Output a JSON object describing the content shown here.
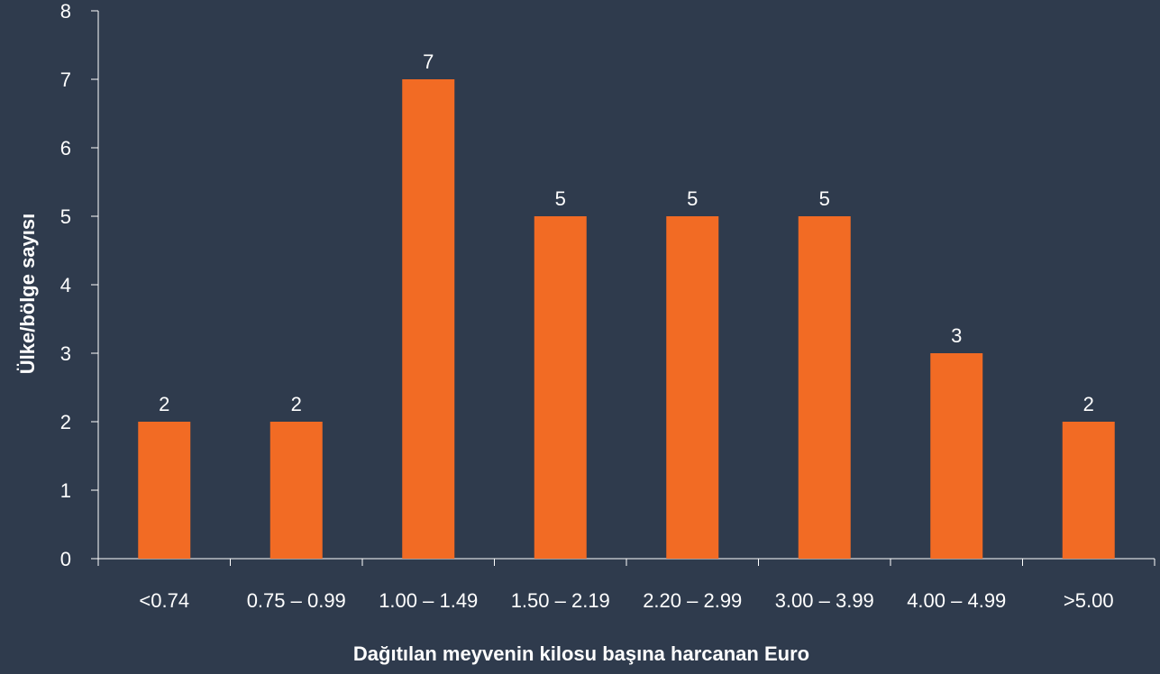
{
  "chart_data": {
    "type": "bar",
    "categories": [
      "<0.74",
      "0.75 – 0.99",
      "1.00 – 1.49",
      "1.50 – 2.19",
      "2.20 – 2.99",
      "3.00 – 3.99",
      "4.00 – 4.99",
      ">5.00"
    ],
    "values": [
      2,
      2,
      7,
      5,
      5,
      5,
      3,
      2
    ],
    "data_labels": [
      "2",
      "2",
      "7",
      "5",
      "5",
      "5",
      "3",
      "2"
    ],
    "title": "",
    "xlabel": "Dağıtılan meyvenin kilosu başına harcanan Euro",
    "ylabel": "Ülke/bölge sayısı",
    "ylim": [
      0,
      8
    ],
    "yticks": [
      0,
      1,
      2,
      3,
      4,
      5,
      6,
      7,
      8
    ],
    "grid": false,
    "legend": "none",
    "colors": {
      "background": "#2f3b4d",
      "bar": "#f26b24",
      "axis": "#ffffff",
      "text": "#ffffff"
    }
  }
}
